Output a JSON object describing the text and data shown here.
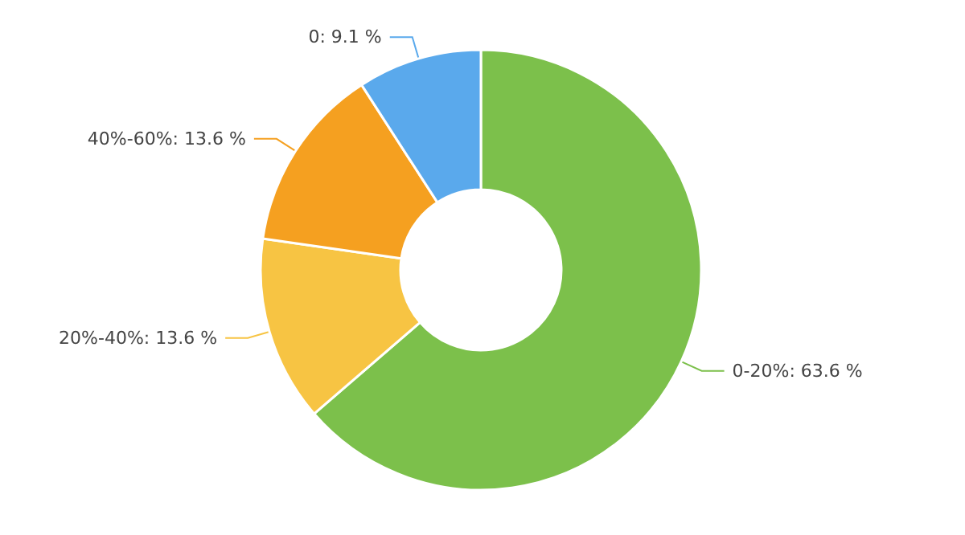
{
  "chart_data": {
    "type": "donut",
    "categories": [
      "0-20%",
      "20%-40%",
      "40%-60%",
      "0"
    ],
    "values": [
      63.6,
      13.6,
      13.6,
      9.1
    ],
    "value_labels": [
      "63.6 %",
      "13.6 %",
      "13.6 %",
      "9.1 %"
    ],
    "colors": [
      "#7cc04b",
      "#f7c443",
      "#f5a020",
      "#5aa9ec"
    ],
    "legend": false
  }
}
